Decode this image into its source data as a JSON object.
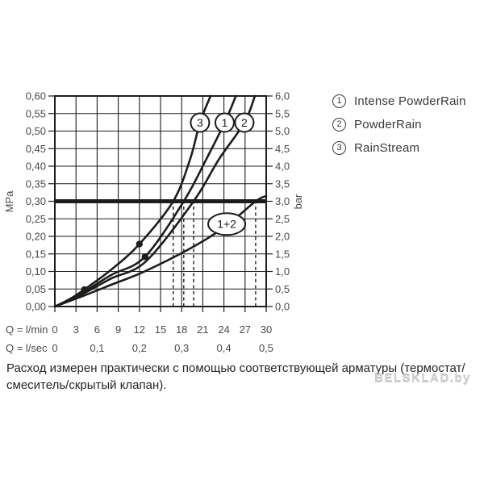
{
  "legend": {
    "items": [
      {
        "num": "1",
        "label": "Intense PowderRain"
      },
      {
        "num": "2",
        "label": "PowderRain"
      },
      {
        "num": "3",
        "label": "RainStream"
      }
    ]
  },
  "note": {
    "line1": "Расход измерен практически с помощью соответствующей арматуры (термостат/",
    "line2": "смеситель/скрытый клапан)."
  },
  "watermark": {
    "text": "BELSKLAD.by"
  },
  "chart_data": {
    "type": "line",
    "title": "",
    "x_axis": {
      "unit_primary": "Q = l/min",
      "unit_secondary": "Q = l/sec",
      "min": 0,
      "max": 30,
      "ticks_lmin": [
        0,
        3,
        6,
        9,
        12,
        15,
        18,
        21,
        24,
        27,
        30
      ],
      "ticks_lmin_labels": [
        "0",
        "3",
        "6",
        "9",
        "12",
        "15",
        "18",
        "21",
        "24",
        "27",
        "30"
      ],
      "ticks_lsec": [
        {
          "label": "0",
          "q": 0
        },
        {
          "label": "0,1",
          "q": 6
        },
        {
          "label": "0,2",
          "q": 12
        },
        {
          "label": "0,3",
          "q": 18
        },
        {
          "label": "0,4",
          "q": 24
        },
        {
          "label": "0,5",
          "q": 30
        }
      ]
    },
    "y_axis_left": {
      "label": "MPa",
      "min": 0,
      "max": 0.6,
      "step": 0.05,
      "tick_labels": [
        "0,60",
        "0,55",
        "0,50",
        "0,45",
        "0,40",
        "0,35",
        "0,30",
        "0,25",
        "0,20",
        "0,15",
        "0,10",
        "0,05",
        "0,00"
      ]
    },
    "y_axis_right": {
      "label": "bar",
      "min": 0,
      "max": 6,
      "step": 0.5,
      "tick_labels": [
        "6,0",
        "5,5",
        "5,0",
        "4,5",
        "4,0",
        "3,5",
        "3,0",
        "2,5",
        "2,0",
        "1,5",
        "1,0",
        "0,5",
        "0,0"
      ]
    },
    "grid": true,
    "series": [
      {
        "id": "3",
        "legend_label": "RainStream",
        "badge": "3",
        "badge_shape": "circle",
        "badge_at": {
          "q": 20.6,
          "p": 0.524
        },
        "points": [
          [
            0,
            0
          ],
          [
            2,
            0.02
          ],
          [
            4,
            0.046
          ],
          [
            8,
            0.105
          ],
          [
            12,
            0.178
          ],
          [
            16.8,
            0.3
          ],
          [
            19.2,
            0.42
          ],
          [
            20.6,
            0.524
          ],
          [
            22.1,
            0.6
          ]
        ]
      },
      {
        "id": "1",
        "legend_label": "Intense PowderRain",
        "badge": "1",
        "badge_shape": "circle",
        "badge_at": {
          "q": 24.1,
          "p": 0.524
        },
        "points": [
          [
            0,
            0
          ],
          [
            2,
            0.018
          ],
          [
            4,
            0.04
          ],
          [
            8,
            0.09
          ],
          [
            12.8,
            0.142
          ],
          [
            18.3,
            0.3
          ],
          [
            21.5,
            0.42
          ],
          [
            24.1,
            0.524
          ],
          [
            25.7,
            0.6
          ]
        ]
      },
      {
        "id": "2",
        "legend_label": "PowderRain",
        "badge": "2",
        "badge_shape": "circle",
        "badge_at": {
          "q": 26.9,
          "p": 0.524
        },
        "points": [
          [
            0,
            0
          ],
          [
            2,
            0.016
          ],
          [
            4,
            0.036
          ],
          [
            8,
            0.08
          ],
          [
            13,
            0.13
          ],
          [
            19.7,
            0.3
          ],
          [
            23.3,
            0.42
          ],
          [
            26.9,
            0.524
          ],
          [
            28.4,
            0.6
          ]
        ]
      },
      {
        "id": "1+2",
        "legend_label": "1+2",
        "badge": "1+2",
        "badge_shape": "ellipse",
        "badge_at": {
          "q": 24.4,
          "p": 0.235
        },
        "points": [
          [
            0,
            0
          ],
          [
            4,
            0.03
          ],
          [
            8,
            0.062
          ],
          [
            12.5,
            0.098
          ],
          [
            18.8,
            0.161
          ],
          [
            24,
            0.225
          ],
          [
            28.5,
            0.3
          ],
          [
            30,
            0.315
          ]
        ]
      }
    ],
    "pressure_reference_line_mpa": 0.3,
    "flow_at_3bar_dashed_q": [
      16.8,
      18.3,
      19.7,
      28.5
    ],
    "point_markers": [
      [
        12.0,
        0.178
      ],
      [
        12.8,
        0.142
      ],
      [
        4.2,
        0.048
      ]
    ],
    "colors": {
      "line": "#1d1d1b",
      "grid": "#1d1d1b",
      "tick_text": "#4a4a49",
      "badge_fill": "#ffffff",
      "legend_text": "#3a3a3b",
      "note_text": "#242424",
      "watermark": "#cbcbcb"
    }
  }
}
